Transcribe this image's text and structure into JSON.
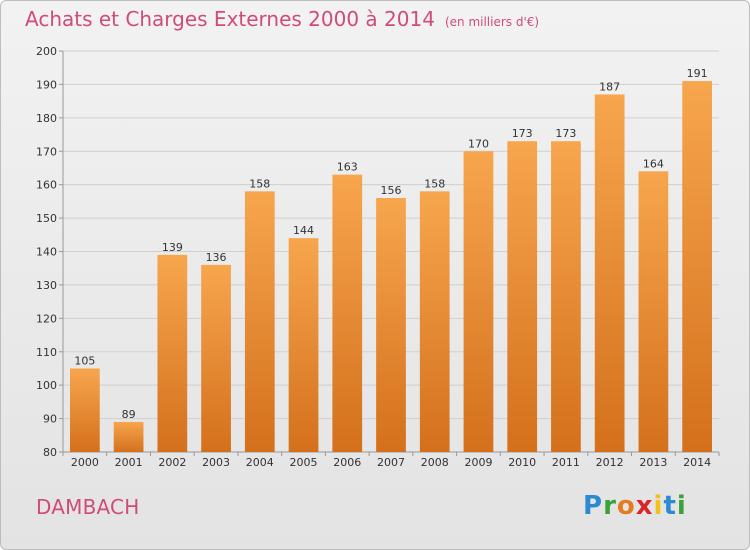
{
  "header": {
    "title": "Achats et Charges Externes 2000 à 2014",
    "unit": "(en milliers d'€)"
  },
  "footer": {
    "place": "DAMBACH",
    "logo_letters": [
      "P",
      "r",
      "o",
      "x",
      "i",
      "t",
      "i"
    ]
  },
  "colors": {
    "title": "#d04c78",
    "bar_top": "#f7a64e",
    "bar_bottom": "#d4701c",
    "grid": "#cfcfcf",
    "axis": "#999999"
  },
  "chart_data": {
    "type": "bar",
    "categories": [
      "2000",
      "2001",
      "2002",
      "2003",
      "2004",
      "2005",
      "2006",
      "2007",
      "2008",
      "2009",
      "2010",
      "2011",
      "2012",
      "2013",
      "2014"
    ],
    "values": [
      105,
      89,
      139,
      136,
      158,
      144,
      163,
      156,
      158,
      170,
      173,
      173,
      187,
      164,
      191
    ],
    "ylim": [
      80,
      200
    ],
    "yticks": [
      80,
      90,
      100,
      110,
      120,
      130,
      140,
      150,
      160,
      170,
      180,
      190,
      200
    ],
    "grid": true,
    "legend": "none"
  }
}
